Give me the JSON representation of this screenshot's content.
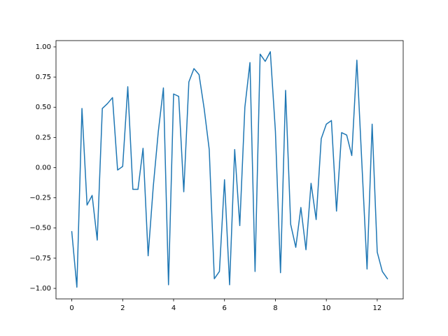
{
  "chart_data": {
    "type": "line",
    "x": [
      0,
      0.2,
      0.4,
      0.6,
      0.8,
      1,
      1.2,
      1.4,
      1.6,
      1.8,
      2,
      2.2,
      2.4,
      2.6,
      2.8,
      3,
      3.2,
      3.4,
      3.6,
      3.8,
      4,
      4.2,
      4.4,
      4.6,
      4.8,
      5,
      5.2,
      5.4,
      5.6,
      5.8,
      6,
      6.2,
      6.4,
      6.6,
      6.8,
      7,
      7.2,
      7.4,
      7.6,
      7.8,
      8,
      8.2,
      8.4,
      8.6,
      8.8,
      9,
      9.2,
      9.4,
      9.6,
      9.8,
      10,
      10.2,
      10.4,
      10.6,
      10.8,
      11,
      11.2,
      11.4,
      11.6,
      11.8,
      12,
      12.2,
      12.4
    ],
    "series": [
      {
        "color": "#1f77b4",
        "values": [
          -0.53,
          -0.99,
          0.49,
          -0.31,
          -0.23,
          -0.6,
          0.49,
          0.53,
          0.58,
          -0.02,
          0.01,
          0.67,
          -0.18,
          -0.18,
          0.16,
          -0.73,
          -0.16,
          0.3,
          0.66,
          -0.97,
          0.61,
          0.59,
          -0.2,
          0.71,
          0.82,
          0.77,
          0.49,
          0.15,
          -0.92,
          -0.86,
          -0.1,
          -0.97,
          0.15,
          -0.48,
          0.5,
          0.87,
          -0.86,
          0.94,
          0.88,
          0.96,
          0.3,
          -0.87,
          0.64,
          -0.47,
          -0.66,
          -0.33,
          -0.68,
          -0.13,
          -0.43,
          0.24,
          0.36,
          0.39,
          -0.36,
          0.29,
          0.27,
          0.1,
          0.89,
          0.02,
          -0.84,
          0.36,
          -0.7,
          -0.86,
          -0.92
        ]
      }
    ],
    "xlim": [
      -0.62,
      13.02
    ],
    "ylim": [
      -1.087,
      1.052
    ],
    "xticks": [
      0,
      2,
      4,
      6,
      8,
      10,
      12
    ],
    "yticks": [
      {
        "value": -1,
        "label": "−1.00"
      },
      {
        "value": -0.75,
        "label": "−0.75"
      },
      {
        "value": -0.5,
        "label": "−0.50"
      },
      {
        "value": -0.25,
        "label": "−0.25"
      },
      {
        "value": 0,
        "label": "0.00"
      },
      {
        "value": 0.25,
        "label": "0.25"
      },
      {
        "value": 0.5,
        "label": "0.50"
      },
      {
        "value": 0.75,
        "label": "0.75"
      },
      {
        "value": 1,
        "label": "1.00"
      }
    ]
  }
}
